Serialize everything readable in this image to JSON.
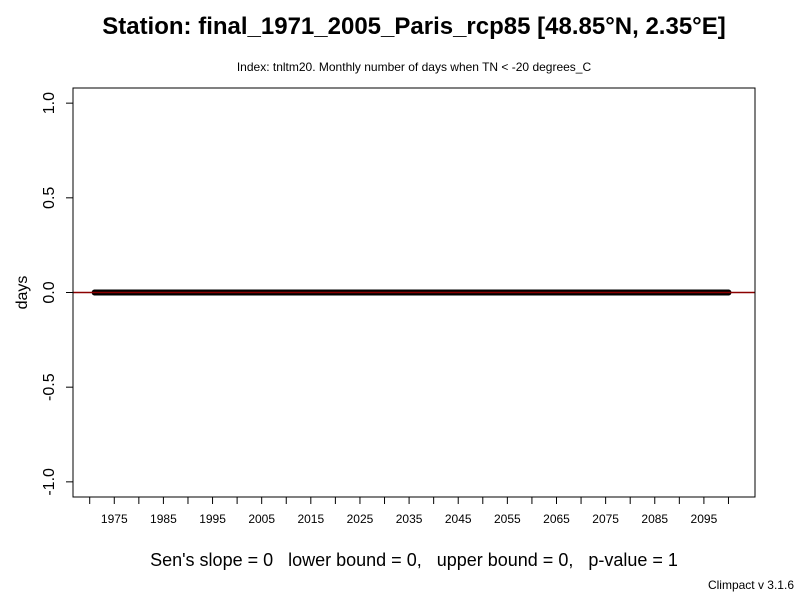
{
  "header": {
    "title": "Station: final_1971_2005_Paris_rcp85 [48.85°N, 2.35°E]",
    "subtitle": "Index: tnltm20. Monthly number of days when TN < -20 degrees_C"
  },
  "footer": {
    "stats": "Sen's slope = 0   lower bound = 0,   upper bound = 0,   p-value = 1",
    "credit": "Climpact v 3.1.6"
  },
  "colors": {
    "points": "#000000",
    "trend_line": "#8b0000",
    "axis": "#000000"
  },
  "chart_data": {
    "type": "line",
    "title": "Station: final_1971_2005_Paris_rcp85 [48.85°N, 2.35°E]",
    "subtitle": "Index: tnltm20. Monthly number of days when TN < -20 degrees_C",
    "xlabel": "",
    "ylabel": "days",
    "xlim": [
      1966.6,
      2105.4
    ],
    "ylim": [
      -1.08,
      1.08
    ],
    "x_ticks_minor": [
      1970,
      1975,
      1980,
      1985,
      1990,
      1995,
      2000,
      2005,
      2010,
      2015,
      2020,
      2025,
      2030,
      2035,
      2040,
      2045,
      2050,
      2055,
      2060,
      2065,
      2070,
      2075,
      2080,
      2085,
      2090,
      2095,
      2100
    ],
    "x_tick_labels": [
      "1975",
      "1985",
      "1995",
      "2005",
      "2015",
      "2025",
      "2035",
      "2045",
      "2055",
      "2065",
      "2075",
      "2085",
      "2095"
    ],
    "y_tick_labels": [
      "-1.0",
      "-0.5",
      "0.0",
      "0.5",
      "1.0"
    ],
    "y_ticks": [
      -1.0,
      -0.5,
      0.0,
      0.5,
      1.0
    ],
    "grid": false,
    "series": [
      {
        "x_start": 1971,
        "x_end": 2100,
        "value": 0
      }
    ],
    "trend": {
      "slope": 0,
      "intercept": 0
    }
  }
}
